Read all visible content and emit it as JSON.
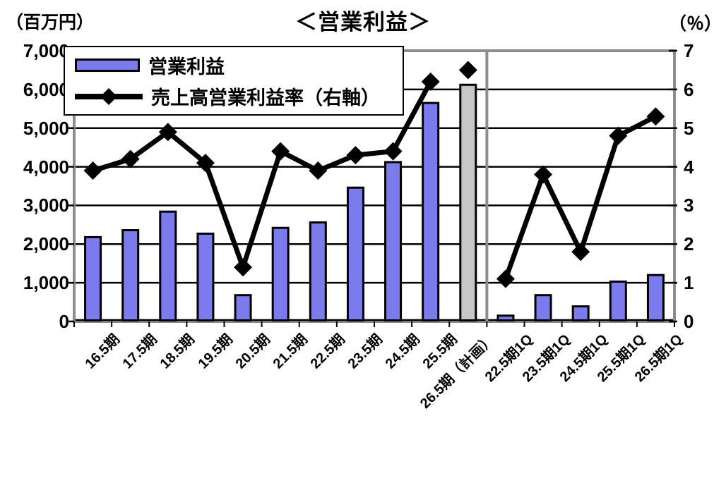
{
  "title": "＜営業利益＞",
  "axis_units": {
    "left": "（百万円）",
    "right": "（％）"
  },
  "legend": {
    "bar_label": "営業利益",
    "line_label": "売上高営業利益率（右軸）"
  },
  "chart_data": {
    "type": "bar+line combo",
    "title": "＜営業利益＞",
    "categories": [
      "16.5期",
      "17.5期",
      "18.5期",
      "19.5期",
      "20.5期",
      "21.5期",
      "22.5期",
      "23.5期",
      "24.5期",
      "25.5期",
      "26.5期（計画）",
      "22.5期1Q",
      "23.5期1Q",
      "24.5期1Q",
      "25.5期1Q",
      "26.5期1Q"
    ],
    "series": [
      {
        "name": "営業利益",
        "type": "bar",
        "axis": "left",
        "unit": "百万円",
        "values": [
          2180,
          2360,
          2840,
          2270,
          680,
          2420,
          2560,
          3460,
          4120,
          5650,
          6120,
          150,
          680,
          390,
          1030,
          1200
        ]
      },
      {
        "name": "売上高営業利益率（右軸）",
        "type": "line",
        "axis": "right",
        "unit": "%",
        "values": [
          3.9,
          4.2,
          4.9,
          4.1,
          1.4,
          4.4,
          3.9,
          4.3,
          4.4,
          6.2,
          6.5,
          1.1,
          3.8,
          1.8,
          4.8,
          5.3
        ],
        "line_segments": [
          [
            0,
            9
          ],
          [
            11,
            15
          ]
        ],
        "isolated_marker_indices": [
          10
        ]
      }
    ],
    "left_axis": {
      "label": "（百万円）",
      "ticks": [
        "7,000",
        "6,000",
        "5,000",
        "4,000",
        "3,000",
        "2,000",
        "1,000",
        "0"
      ],
      "range": [
        0,
        7000
      ]
    },
    "right_axis": {
      "label": "（％）",
      "ticks": [
        "7",
        "6",
        "5",
        "4",
        "3",
        "2",
        "1",
        "0"
      ],
      "range": [
        0,
        7
      ]
    },
    "divider_after_index": 10,
    "plan_bar_category": "26.5期（計画）",
    "grid": "horizontal black lines every 1000 (left) / 1% (right)",
    "legend_position": "top-left overlay",
    "colors": {
      "bar_fill": "#7b7bee",
      "plan_bar_fill": "#c6c6c6",
      "bar_border": "#000000",
      "line": "#000000",
      "plot_border": "#8c8c8c",
      "background": "#ffffff"
    }
  }
}
